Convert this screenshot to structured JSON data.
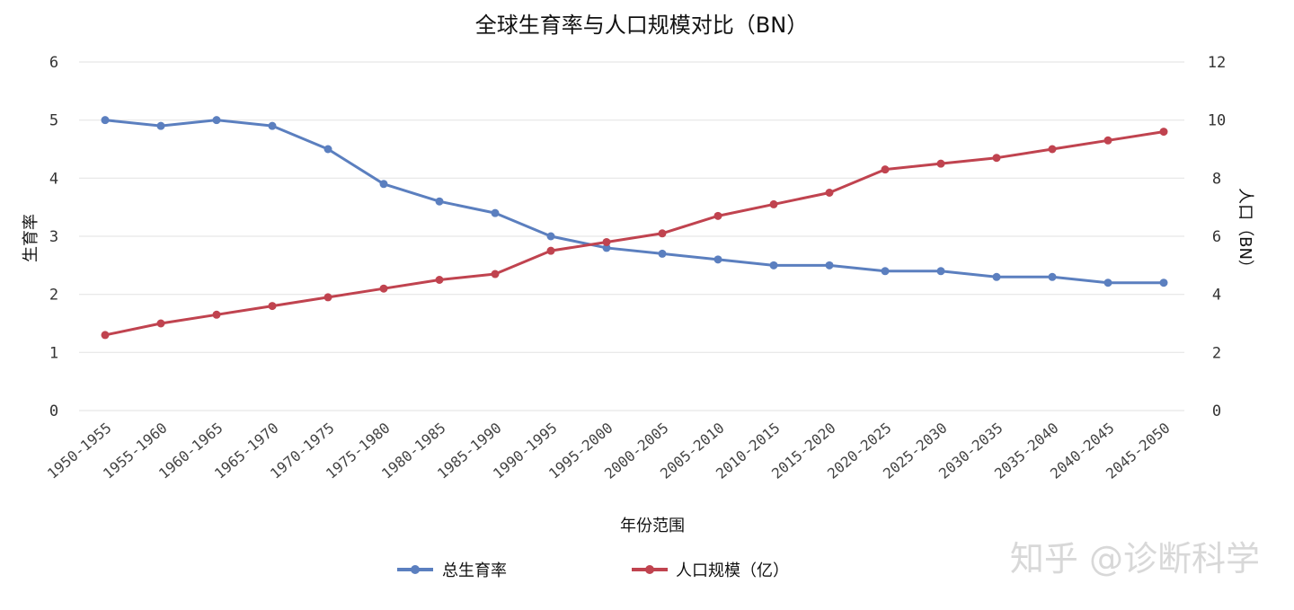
{
  "chart_data": {
    "type": "line",
    "title": "全球生育率与人口规模对比（BN）",
    "xlabel": "年份范围",
    "ylabel": "生育率",
    "y2label": "人口（BN）",
    "ylim": [
      0,
      6
    ],
    "y2lim": [
      0,
      12
    ],
    "yticks": [
      "0",
      "1",
      "2",
      "3",
      "4",
      "5",
      "6"
    ],
    "y2ticks": [
      "0",
      "2",
      "4",
      "6",
      "8",
      "10",
      "12"
    ],
    "grid": true,
    "legend_position": "bottom",
    "categories": [
      "1950-1955",
      "1955-1960",
      "1960-1965",
      "1965-1970",
      "1970-1975",
      "1975-1980",
      "1980-1985",
      "1985-1990",
      "1990-1995",
      "1995-2000",
      "2000-2005",
      "2005-2010",
      "2010-2015",
      "2015-2020",
      "2020-2025",
      "2025-2030",
      "2030-2035",
      "2035-2040",
      "2040-2045",
      "2045-2050"
    ],
    "series": [
      {
        "name": "总生育率",
        "axis": "left",
        "color": "#5b7fbf",
        "values": [
          5.0,
          4.9,
          5.0,
          4.9,
          4.5,
          3.9,
          3.6,
          3.4,
          3.0,
          2.8,
          2.7,
          2.6,
          2.5,
          2.5,
          2.4,
          2.4,
          2.3,
          2.3,
          2.2,
          2.2
        ]
      },
      {
        "name": "人口规模（亿）",
        "axis": "right",
        "color": "#c0434f",
        "values": [
          2.6,
          3.0,
          3.3,
          3.6,
          3.9,
          4.2,
          4.5,
          4.7,
          5.5,
          5.8,
          6.1,
          6.7,
          7.1,
          7.5,
          8.3,
          8.5,
          8.7,
          9.0,
          9.3,
          9.6
        ]
      }
    ]
  },
  "watermark": "知乎 @诊断科学"
}
